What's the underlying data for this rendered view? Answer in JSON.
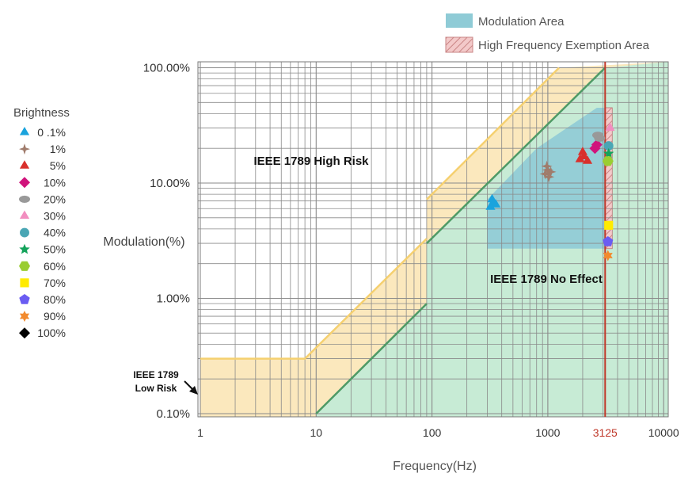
{
  "chart_data": {
    "type": "scatter",
    "xlabel": "Frequency(Hz)",
    "ylabel": "Modulation(%)",
    "x_scale": "log",
    "y_scale": "log",
    "xlim": [
      1,
      20000
    ],
    "ylim": [
      0.1,
      100
    ],
    "x_ticks": [
      {
        "value": 1,
        "label": "1"
      },
      {
        "value": 10,
        "label": "10"
      },
      {
        "value": 100,
        "label": "100"
      },
      {
        "value": 1000,
        "label": "1000"
      },
      {
        "value": 3125,
        "label": "3125",
        "color": "#c0392b"
      },
      {
        "value": 10000,
        "label": "10000"
      }
    ],
    "y_ticks": [
      {
        "value": 0.1,
        "label": "0.10%"
      },
      {
        "value": 1,
        "label": "1.00%"
      },
      {
        "value": 10,
        "label": "10.00%"
      },
      {
        "value": 100,
        "label": "100.00%"
      }
    ],
    "grid": true,
    "legend_position": "top-right",
    "area_legend": [
      {
        "label": "Modulation Area",
        "color": "#8fcbd6",
        "pattern": "solid"
      },
      {
        "label": "High Frequency Exemption Area",
        "color": "#e9a3a3",
        "pattern": "hatch"
      }
    ],
    "annotations": {
      "high_risk": "IEEE 1789 High Risk",
      "no_effect": "IEEE 1789 No Effect",
      "low_risk_line1": "IEEE 1789",
      "low_risk_line2": "Low Risk"
    },
    "brightness_title": "Brightness",
    "series": [
      {
        "name": "0 .1%",
        "marker": "triangle",
        "color": "#1aa3dd",
        "points": [
          [
            320,
            6.2
          ],
          [
            340,
            6.8
          ],
          [
            355,
            6.5
          ],
          [
            330,
            7.2
          ]
        ]
      },
      {
        "name": "1%",
        "marker": "star4",
        "color": "#a07c6c",
        "points": [
          [
            950,
            12
          ],
          [
            1000,
            13
          ],
          [
            1060,
            12.5
          ],
          [
            980,
            14
          ],
          [
            1020,
            11.3
          ]
        ]
      },
      {
        "name": "5%",
        "marker": "triangle",
        "color": "#d9302c",
        "points": [
          [
            1900,
            16
          ],
          [
            2050,
            17
          ],
          [
            2200,
            15.5
          ],
          [
            2000,
            18.5
          ]
        ]
      },
      {
        "name": "10%",
        "marker": "diamond",
        "color": "#d0147c",
        "points": [
          [
            2550,
            20
          ],
          [
            2650,
            21.5
          ]
        ]
      },
      {
        "name": "20%",
        "marker": "ellipse",
        "color": "#999999",
        "points": [
          [
            2700,
            26
          ],
          [
            2800,
            24.5
          ]
        ]
      },
      {
        "name": "30%",
        "marker": "triangle",
        "color": "#f28ec0",
        "points": [
          [
            3450,
            30
          ]
        ]
      },
      {
        "name": "40%",
        "marker": "circle",
        "color": "#4aa6b4",
        "points": [
          [
            3350,
            21
          ]
        ]
      },
      {
        "name": "50%",
        "marker": "star5",
        "color": "#14a35b",
        "points": [
          [
            3350,
            18
          ]
        ]
      },
      {
        "name": "60%",
        "marker": "hexagon",
        "color": "#9acd32",
        "points": [
          [
            3300,
            15.5
          ]
        ]
      },
      {
        "name": "70%",
        "marker": "square",
        "color": "#ffeb00",
        "points": [
          [
            3350,
            4.3
          ]
        ]
      },
      {
        "name": "80%",
        "marker": "pentagon",
        "color": "#6a5cf2",
        "points": [
          [
            3300,
            3.1
          ]
        ]
      },
      {
        "name": "90%",
        "marker": "star6",
        "color": "#f28a2e",
        "points": [
          [
            3300,
            2.35
          ]
        ]
      },
      {
        "name": "100%",
        "marker": "diamond",
        "color": "#000000",
        "points": []
      }
    ]
  }
}
